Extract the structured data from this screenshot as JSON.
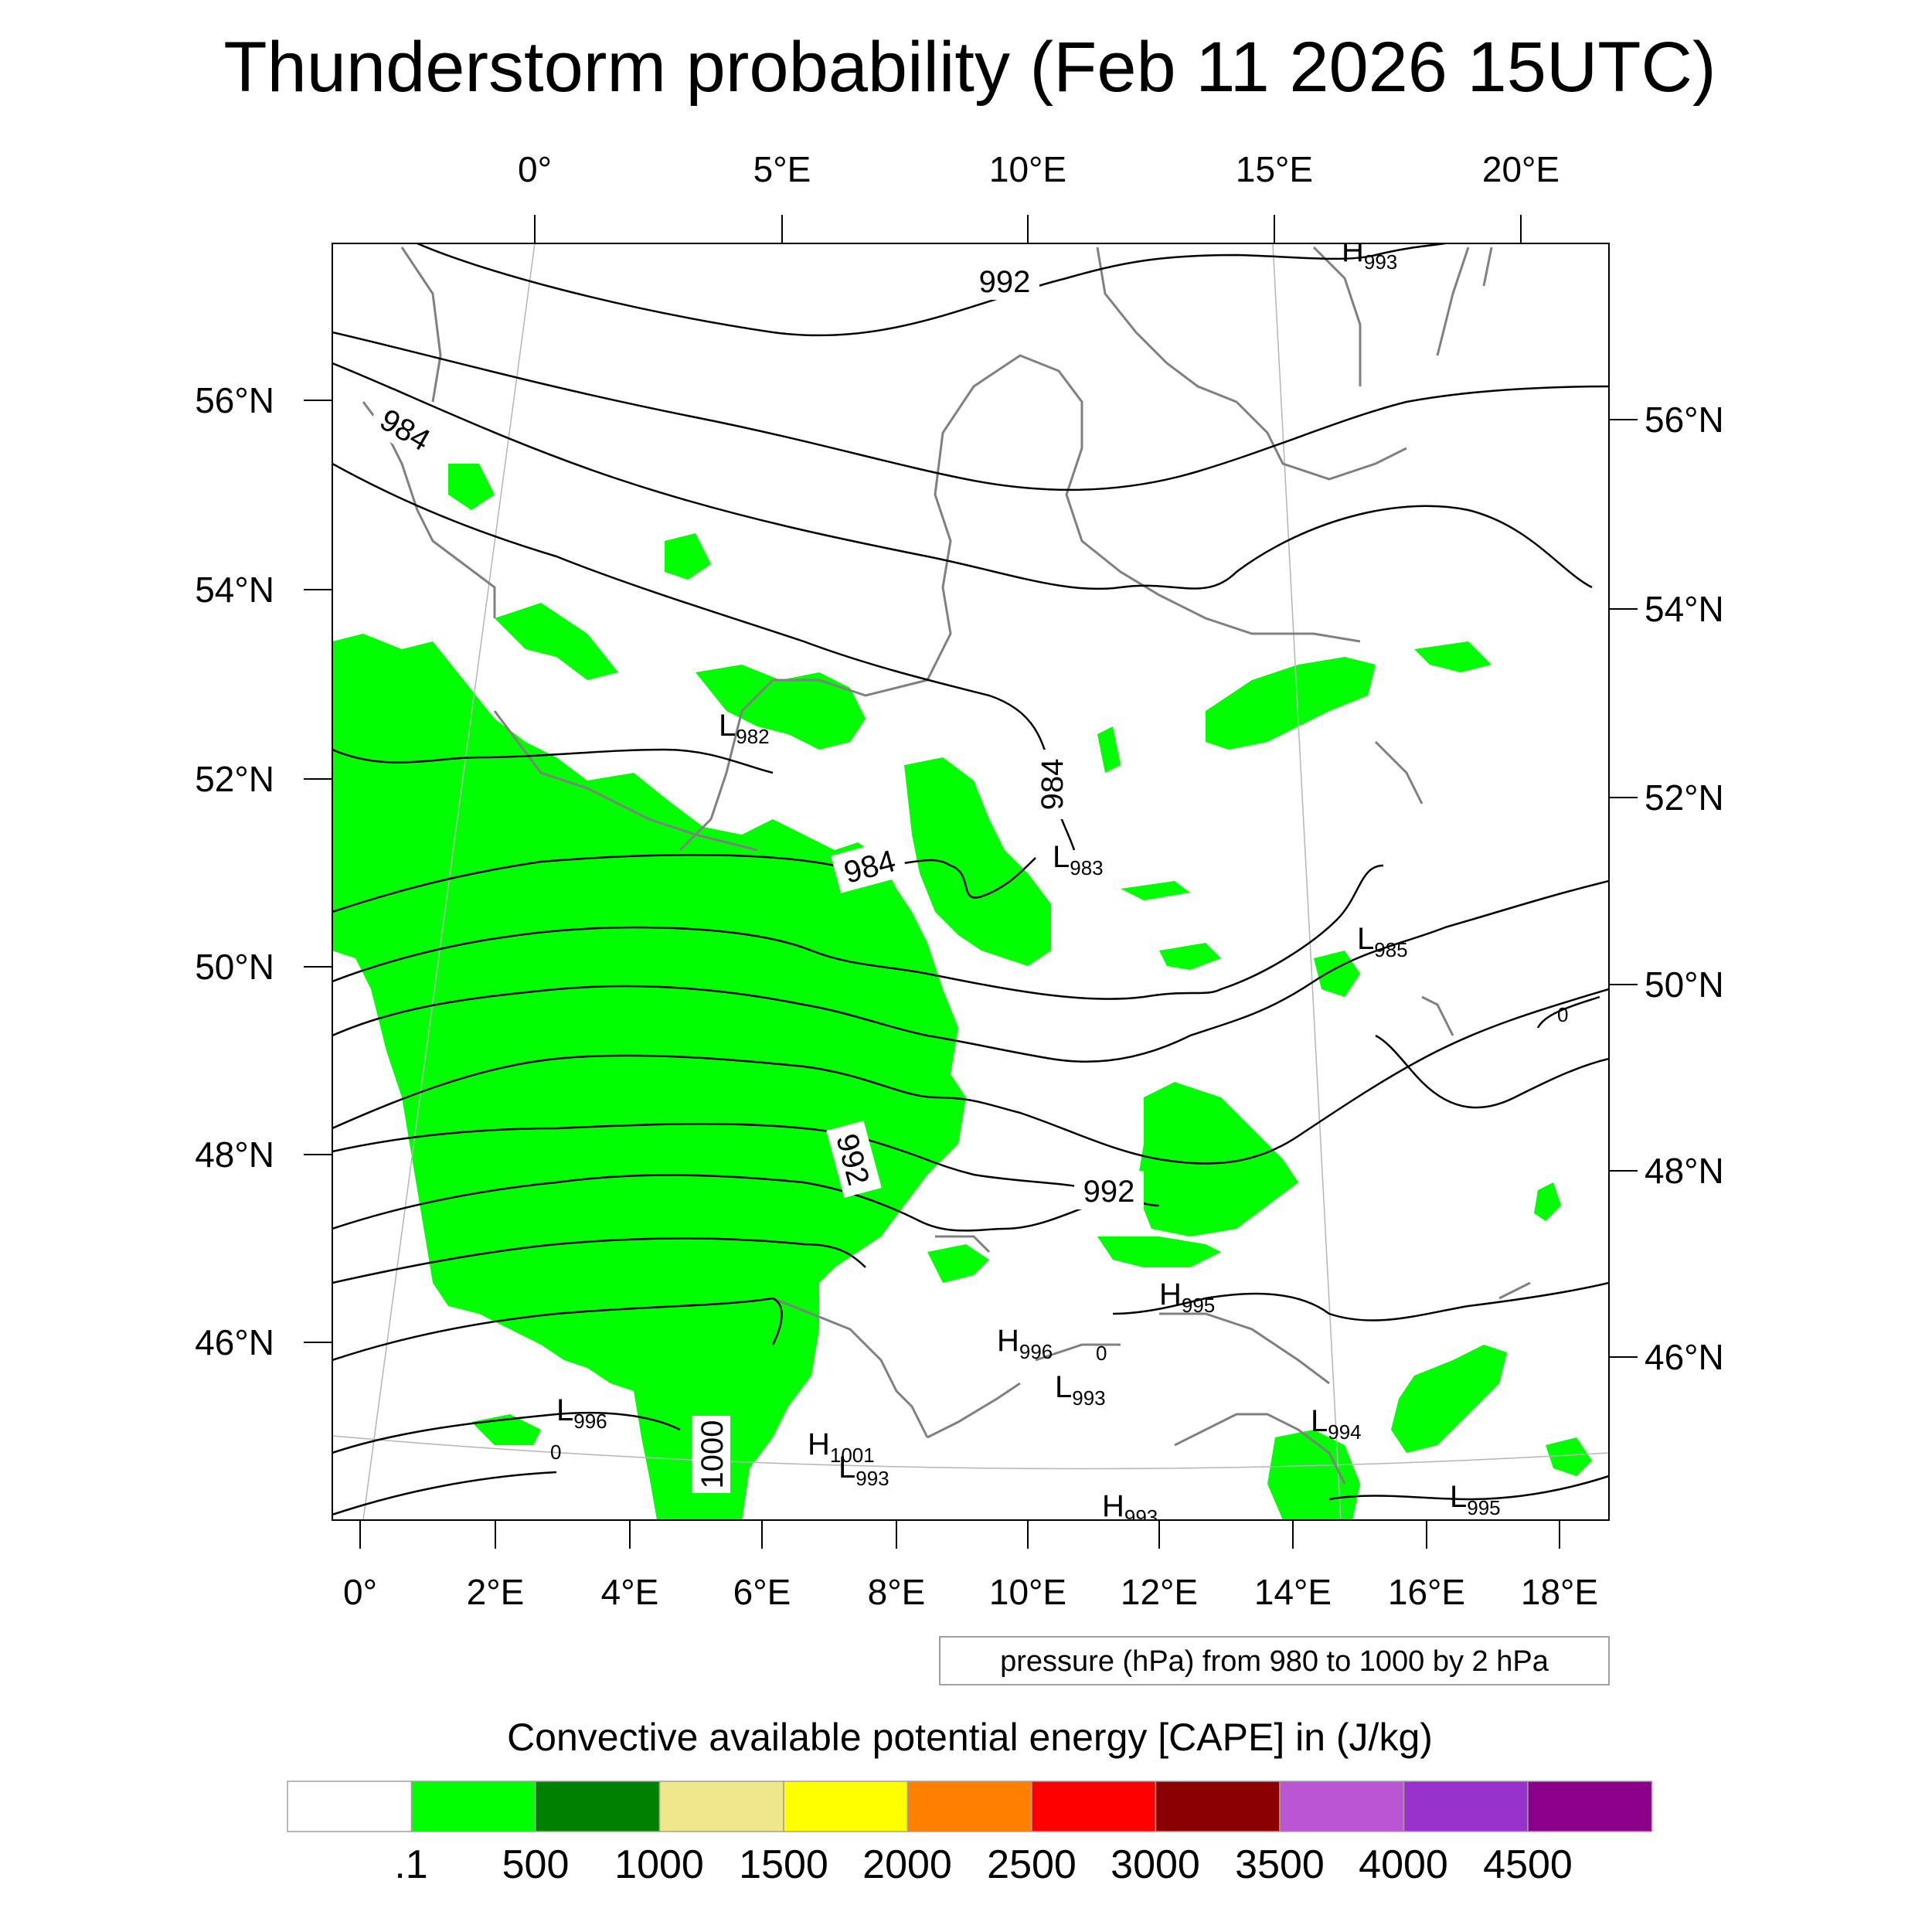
{
  "title": "Thunderstorm probability (Feb 11 2026 15UTC)",
  "map": {
    "top_lon_labels": [
      "0°",
      "5°E",
      "10°E",
      "15°E",
      "20°E"
    ],
    "bottom_lon_labels": [
      "0°",
      "2°E",
      "4°E",
      "6°E",
      "8°E",
      "10°E",
      "12°E",
      "14°E",
      "16°E",
      "18°E"
    ],
    "left_lat_labels": [
      "56°N",
      "54°N",
      "52°N",
      "50°N",
      "48°N",
      "46°N"
    ],
    "right_lat_labels": [
      "56°N",
      "54°N",
      "52°N",
      "50°N",
      "48°N",
      "46°N"
    ],
    "isobar_labels": [
      {
        "text": "992"
      },
      {
        "text": "984"
      },
      {
        "text": "984"
      },
      {
        "text": "984"
      },
      {
        "text": "992"
      },
      {
        "text": "992"
      },
      {
        "text": "1000"
      }
    ],
    "centers": [
      {
        "letter": "H",
        "value": "993"
      },
      {
        "letter": "L",
        "value": "982"
      },
      {
        "letter": "L",
        "value": "983"
      },
      {
        "letter": "L",
        "value": "985"
      },
      {
        "letter": "H",
        "value": "995"
      },
      {
        "letter": "H",
        "value": "996"
      },
      {
        "letter": "L",
        "value": "993"
      },
      {
        "letter": "L",
        "value": "996"
      },
      {
        "letter": "H",
        "value": "1001"
      },
      {
        "letter": "L",
        "value": "993"
      },
      {
        "letter": "L",
        "value": "994"
      },
      {
        "letter": "H",
        "value": "993"
      },
      {
        "letter": "L",
        "value": "995"
      }
    ],
    "small_zero_labels": [
      "0",
      "0",
      "0"
    ]
  },
  "contour_note": "pressure (hPa) from 980 to 1000 by 2 hPa",
  "colorbar": {
    "title": "Convective available potential energy [CAPE] in (J/kg)",
    "colors": [
      "#ffffff",
      "#00ff00",
      "#008000",
      "#f0e68c",
      "#ffff00",
      "#ff8000",
      "#ff0000",
      "#8b0000",
      "#ba55d3",
      "#9932cc",
      "#8b008b"
    ],
    "labels": [
      ".1",
      "500",
      "1000",
      "1500",
      "2000",
      "2500",
      "3000",
      "3500",
      "4000",
      "4500"
    ]
  },
  "chart_data": {
    "type": "heatmap",
    "title": "Thunderstorm probability (Feb 11 2026 15UTC)",
    "variable": "Convective available potential energy [CAPE] in (J/kg)",
    "levels": [
      0.1,
      500,
      1000,
      1500,
      2000,
      2500,
      3000,
      3500,
      4000,
      4500
    ],
    "contour_variable": "pressure (hPa)",
    "contour_levels": [
      980,
      982,
      984,
      986,
      988,
      990,
      992,
      994,
      996,
      998,
      1000
    ],
    "lon_range": [
      -0.4,
      18.8
    ],
    "lat_range": [
      44.3,
      57.5
    ],
    "dominant_cape_class": ".1 - 500 J/kg over France, Benelux and southern Germany"
  }
}
